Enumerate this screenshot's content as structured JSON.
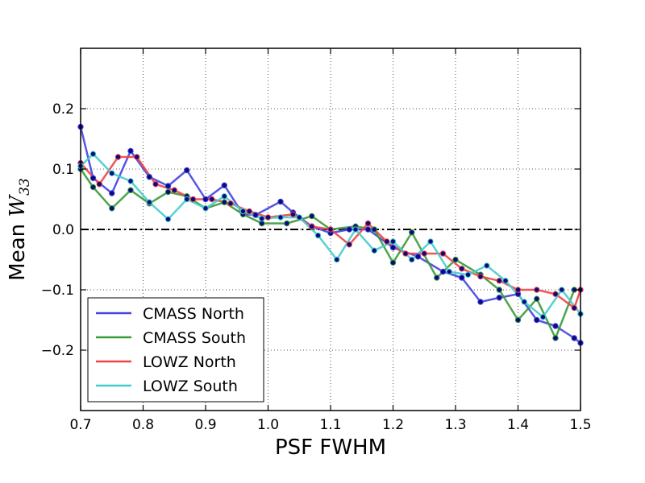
{
  "chart_data": {
    "type": "line",
    "title": "",
    "xlabel": "PSF FWHM",
    "ylabel_prefix": "Mean ",
    "ylabel_var": "W",
    "ylabel_sub": "33",
    "xlim": [
      0.7,
      1.5
    ],
    "ylim": [
      -0.3,
      0.3
    ],
    "xticks": [
      0.7,
      0.8,
      0.9,
      1.0,
      1.1,
      1.2,
      1.3,
      1.4,
      1.5
    ],
    "xtick_labels": [
      "0.7",
      "0.8",
      "0.9",
      "1.0",
      "1.1",
      "1.2",
      "1.3",
      "1.4",
      "1.5"
    ],
    "yticks": [
      0.2,
      0.1,
      0.0,
      -0.1,
      -0.2
    ],
    "ytick_labels": [
      "0.2",
      "0.1",
      "0.0",
      "−0.1",
      "−0.2"
    ],
    "grid": true,
    "reference_line_y": 0.0,
    "legend_position": "lower-left",
    "marker_color": "#0a0a80",
    "series": [
      {
        "name": "CMASS North",
        "color": "#4444e0",
        "x": [
          0.7,
          0.72,
          0.75,
          0.78,
          0.81,
          0.84,
          0.87,
          0.9,
          0.93,
          0.96,
          0.98,
          1.02,
          1.04,
          1.07,
          1.1,
          1.13,
          1.16,
          1.2,
          1.24,
          1.28,
          1.31,
          1.34,
          1.37,
          1.4,
          1.43,
          1.46,
          1.49,
          1.5
        ],
        "y": [
          0.17,
          0.085,
          0.06,
          0.13,
          0.087,
          0.072,
          0.098,
          0.05,
          0.073,
          0.025,
          0.024,
          0.046,
          0.028,
          0.005,
          -0.006,
          0.0,
          0.0,
          -0.03,
          -0.045,
          -0.07,
          -0.08,
          -0.12,
          -0.113,
          -0.107,
          -0.15,
          -0.16,
          -0.18,
          -0.188
        ]
      },
      {
        "name": "CMASS South",
        "color": "#3a9a3a",
        "x": [
          0.7,
          0.72,
          0.75,
          0.78,
          0.81,
          0.84,
          0.87,
          0.9,
          0.93,
          0.96,
          0.99,
          1.03,
          1.07,
          1.1,
          1.14,
          1.17,
          1.2,
          1.23,
          1.27,
          1.3,
          1.34,
          1.37,
          1.4,
          1.43,
          1.46,
          1.49
        ],
        "y": [
          0.1,
          0.07,
          0.035,
          0.065,
          0.043,
          0.062,
          0.055,
          0.035,
          0.045,
          0.025,
          0.01,
          0.01,
          0.022,
          0.0,
          0.005,
          0.0,
          -0.055,
          -0.005,
          -0.08,
          -0.05,
          -0.075,
          -0.1,
          -0.15,
          -0.115,
          -0.18,
          -0.1
        ]
      },
      {
        "name": "LOWZ North",
        "color": "#ee4444",
        "x": [
          0.7,
          0.73,
          0.76,
          0.79,
          0.82,
          0.85,
          0.88,
          0.91,
          0.94,
          0.97,
          1.0,
          1.04,
          1.07,
          1.1,
          1.13,
          1.16,
          1.19,
          1.22,
          1.25,
          1.28,
          1.31,
          1.34,
          1.37,
          1.4,
          1.43,
          1.46,
          1.49,
          1.5
        ],
        "y": [
          0.11,
          0.075,
          0.12,
          0.12,
          0.075,
          0.065,
          0.05,
          0.05,
          0.043,
          0.03,
          0.02,
          0.025,
          0.005,
          0.0,
          -0.025,
          0.01,
          -0.02,
          -0.04,
          -0.04,
          -0.04,
          -0.065,
          -0.078,
          -0.085,
          -0.1,
          -0.1,
          -0.107,
          -0.13,
          -0.1
        ]
      },
      {
        "name": "LOWZ South",
        "color": "#44cccc",
        "x": [
          0.7,
          0.72,
          0.75,
          0.78,
          0.81,
          0.84,
          0.87,
          0.9,
          0.93,
          0.96,
          0.99,
          1.02,
          1.05,
          1.08,
          1.11,
          1.14,
          1.17,
          1.2,
          1.23,
          1.26,
          1.29,
          1.32,
          1.35,
          1.38,
          1.41,
          1.44,
          1.47,
          1.5
        ],
        "y": [
          0.105,
          0.125,
          0.093,
          0.08,
          0.045,
          0.017,
          0.05,
          0.035,
          0.055,
          0.03,
          0.018,
          0.02,
          0.02,
          -0.01,
          -0.05,
          0.0,
          -0.035,
          -0.02,
          -0.05,
          -0.02,
          -0.07,
          -0.075,
          -0.06,
          -0.085,
          -0.12,
          -0.145,
          -0.1,
          -0.14
        ]
      }
    ]
  }
}
